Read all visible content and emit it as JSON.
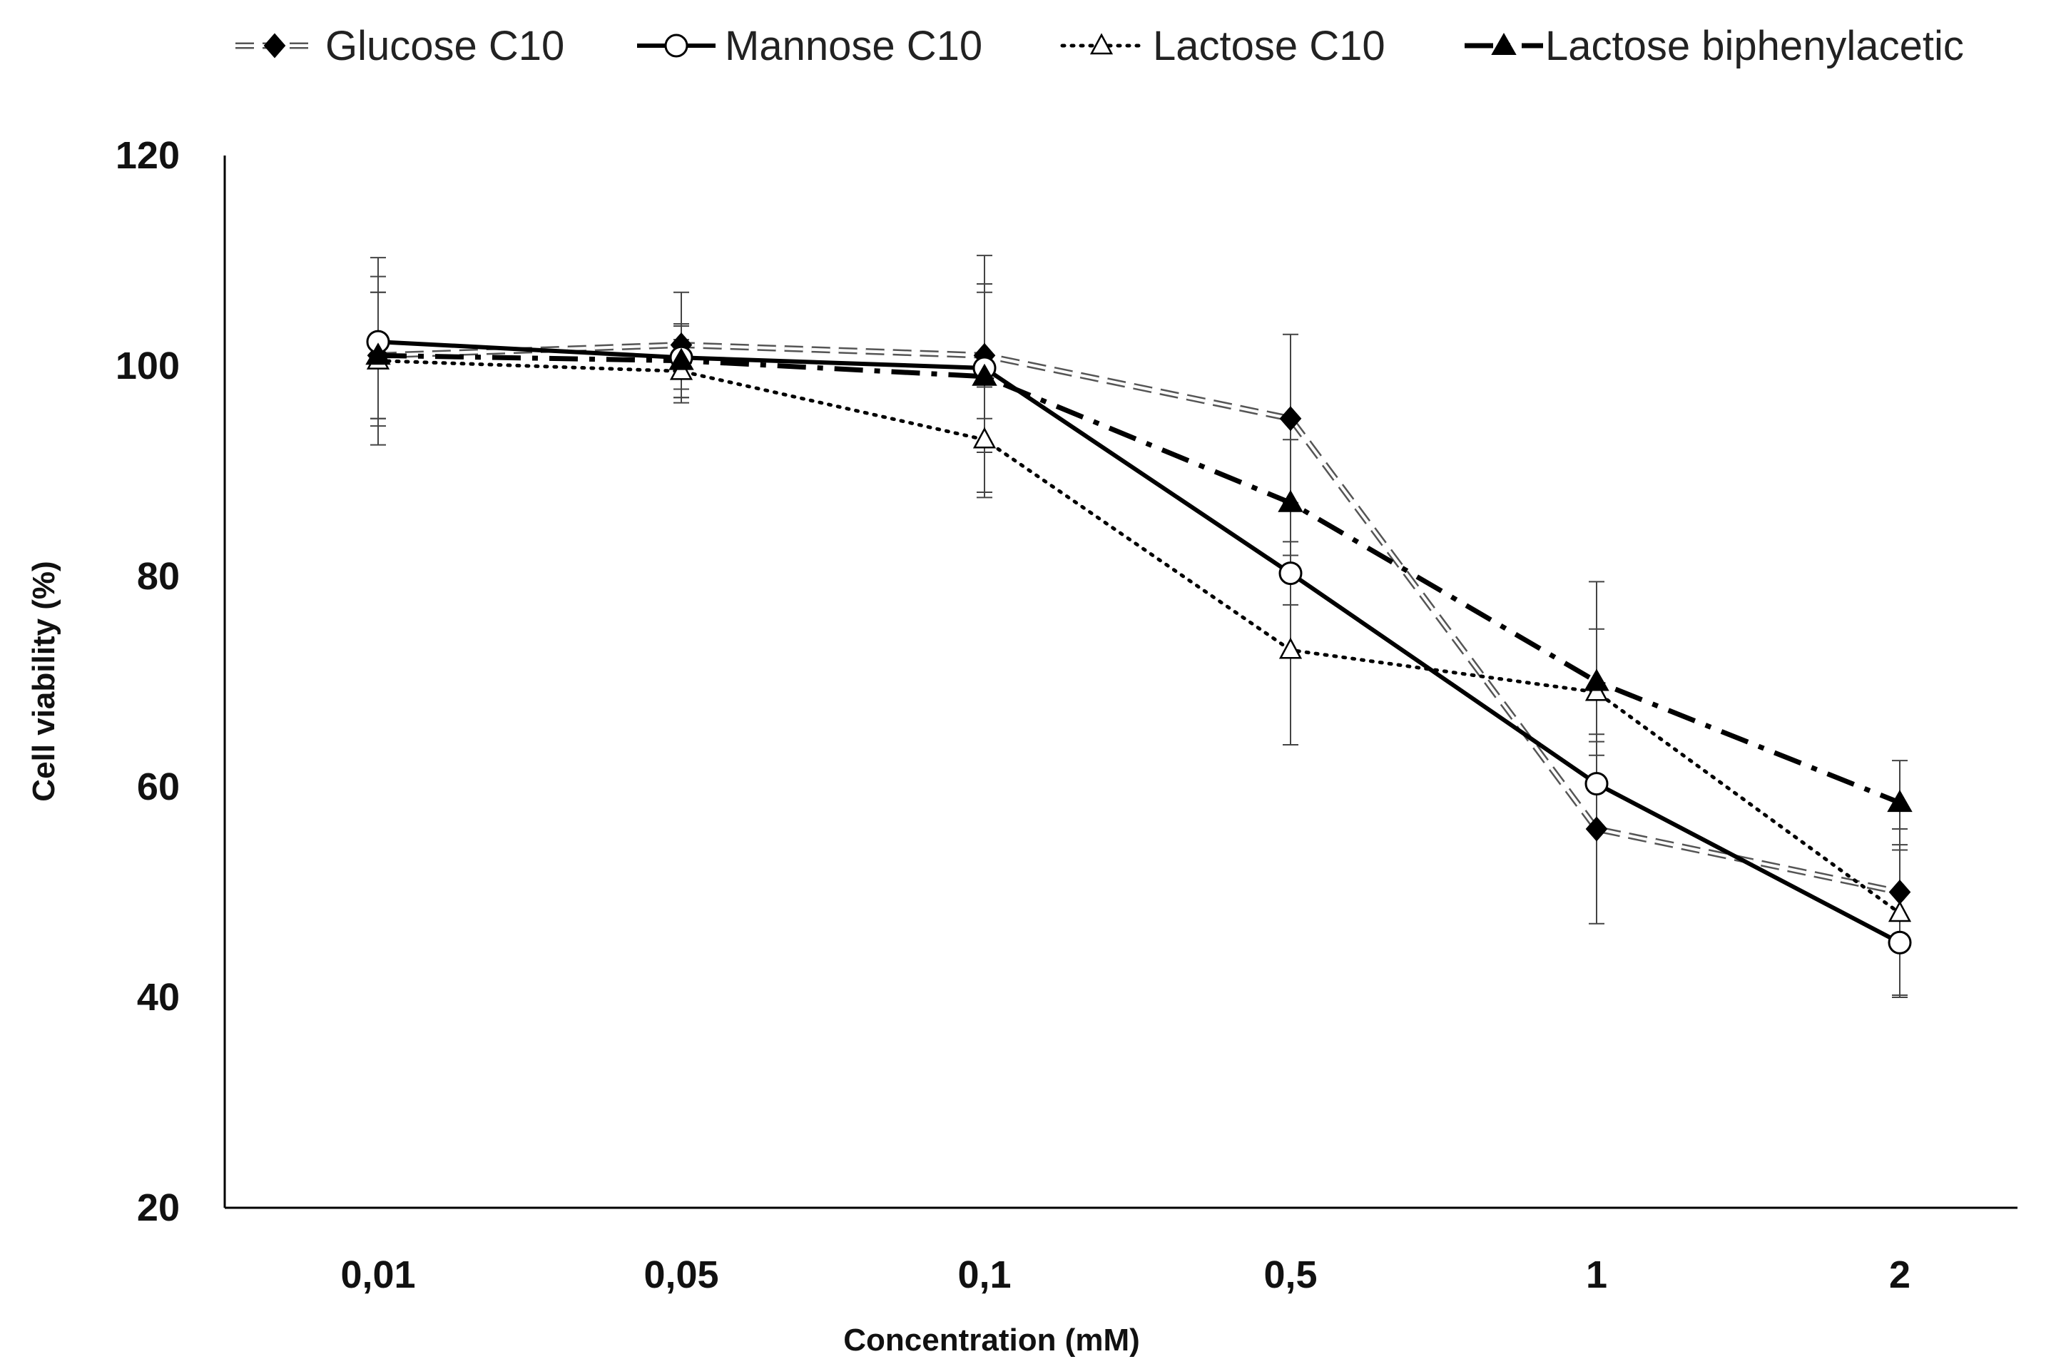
{
  "chart_data": {
    "type": "line",
    "title": "",
    "xlabel": "Concentration (mM)",
    "ylabel": "Cell viability (%)",
    "categories": [
      "0,01",
      "0,05",
      "0,1",
      "0,5",
      "1",
      "2"
    ],
    "ylim": [
      20,
      120
    ],
    "yticks": [
      20,
      40,
      60,
      80,
      100,
      120
    ],
    "grid": false,
    "legend_position": "top",
    "series": [
      {
        "key": "glucose",
        "name": "Glucose C10",
        "values": [
          101,
          102,
          101,
          95,
          56,
          50
        ],
        "errors": [
          6,
          5,
          6,
          8,
          9,
          4
        ],
        "marker": "diamond-filled",
        "line_style": "dashed-double",
        "color": "#000000"
      },
      {
        "key": "mannose",
        "name": "Mannose C10",
        "values": [
          102.3,
          100.8,
          99.8,
          80.3,
          60.3,
          45.2
        ],
        "errors": [
          8,
          3,
          8,
          3,
          4,
          5
        ],
        "marker": "circle-open",
        "line_style": "solid",
        "color": "#000000"
      },
      {
        "key": "lactose",
        "name": "Lactose C10",
        "values": [
          100.5,
          99.5,
          93,
          73,
          69,
          48
        ],
        "errors": [
          8,
          3,
          5,
          9,
          6,
          8
        ],
        "marker": "triangle-open",
        "line_style": "dotted",
        "color": "#000000"
      },
      {
        "key": "lactose_biph",
        "name": "Lactose biphenylacetic",
        "values": [
          101,
          100.5,
          99,
          87,
          70,
          58.5
        ],
        "errors": [
          6,
          3.5,
          11.5,
          6,
          9.5,
          4
        ],
        "marker": "triangle-filled",
        "line_style": "dash-dot",
        "color": "#000000"
      }
    ]
  }
}
